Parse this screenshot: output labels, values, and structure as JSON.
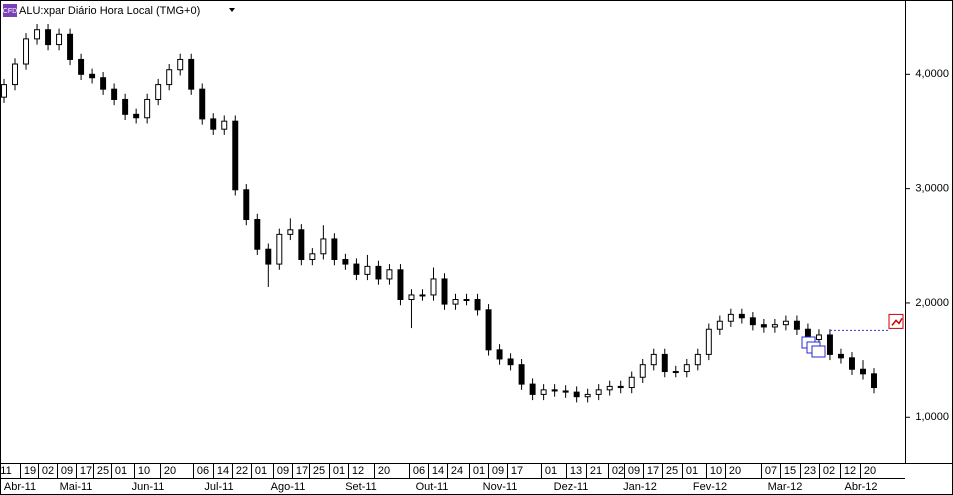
{
  "chart_data": {
    "type": "candlestick",
    "badge": "CFD",
    "title": "ALU:xpar Diário Hora Local (TMG+0)",
    "ylim": [
      0.6,
      4.65
    ],
    "yticks": [
      {
        "value": 1,
        "label": "1,0000"
      },
      {
        "value": 2,
        "label": "2,0000"
      },
      {
        "value": 3,
        "label": "3,0000"
      },
      {
        "value": 4,
        "label": "4,0000"
      }
    ],
    "day_labels": [
      "11",
      "19",
      "02",
      "09",
      "17",
      "25",
      "01",
      "10",
      "20",
      "06",
      "14",
      "22",
      "01",
      "09",
      "17",
      "25",
      "01",
      "12",
      "20",
      "06",
      "14",
      "24",
      "01",
      "09",
      "17",
      "01",
      "13",
      "21",
      "02",
      "09",
      "17",
      "25",
      "01",
      "10",
      "20",
      "07",
      "15",
      "23",
      "02",
      "12",
      "20"
    ],
    "month_labels": [
      "Abr-11",
      "Mai-11",
      "Jun-11",
      "Jul-11",
      "Ago-11",
      "Set-11",
      "Out-11",
      "Nov-11",
      "Dez-11",
      "Jan-12",
      "Fev-12",
      "Mar-12",
      "Abr-12"
    ],
    "up_color": "#ffffff",
    "down_color": "#000000",
    "outline_color": "#000000",
    "alert_level": 1.76,
    "alert_color": "#3a3ad0",
    "open": [
      3.8,
      3.91,
      4.09,
      4.31,
      4.39,
      4.26,
      4.35,
      4.13,
      4.0,
      3.97,
      3.87,
      3.78,
      3.65,
      3.62,
      3.78,
      3.91,
      4.04,
      4.13,
      3.87,
      3.61,
      3.52,
      3.59,
      2.99,
      2.73,
      2.47,
      2.34,
      2.6,
      2.64,
      2.38,
      2.43,
      2.56,
      2.38,
      2.34,
      2.25,
      2.32,
      2.21,
      2.29,
      2.03,
      2.07,
      2.07,
      2.21,
      1.99,
      2.03,
      2.03,
      1.94,
      1.59,
      1.51,
      1.46,
      1.29,
      1.2,
      1.24,
      1.23,
      1.22,
      1.18,
      1.2,
      1.24,
      1.27,
      1.26,
      1.35,
      1.46,
      1.55,
      1.4,
      1.4,
      1.46,
      1.55,
      1.77,
      1.84,
      1.9,
      1.87,
      1.81,
      1.79,
      1.81,
      1.84,
      1.77,
      1.68,
      1.72,
      1.55,
      1.52,
      1.42,
      1.38
    ],
    "high": [
      3.96,
      4.14,
      4.36,
      4.44,
      4.44,
      4.4,
      4.4,
      4.18,
      4.05,
      4.02,
      3.92,
      3.83,
      3.7,
      3.83,
      3.96,
      4.09,
      4.18,
      4.18,
      3.92,
      3.66,
      3.64,
      3.64,
      3.04,
      2.78,
      2.52,
      2.65,
      2.74,
      2.69,
      2.48,
      2.68,
      2.61,
      2.43,
      2.39,
      2.42,
      2.37,
      2.34,
      2.34,
      2.12,
      2.12,
      2.31,
      2.26,
      2.08,
      2.08,
      2.08,
      1.99,
      1.64,
      1.56,
      1.51,
      1.34,
      1.29,
      1.29,
      1.28,
      1.27,
      1.25,
      1.29,
      1.32,
      1.32,
      1.4,
      1.51,
      1.6,
      1.6,
      1.45,
      1.51,
      1.6,
      1.82,
      1.89,
      1.95,
      1.95,
      1.92,
      1.86,
      1.86,
      1.89,
      1.89,
      1.82,
      1.77,
      1.77,
      1.6,
      1.57,
      1.5,
      1.43
    ],
    "low": [
      3.75,
      3.86,
      4.04,
      4.26,
      4.21,
      4.21,
      4.08,
      3.95,
      3.92,
      3.82,
      3.73,
      3.6,
      3.57,
      3.57,
      3.73,
      3.86,
      3.99,
      3.82,
      3.56,
      3.47,
      3.47,
      2.94,
      2.68,
      2.42,
      2.14,
      2.29,
      2.55,
      2.33,
      2.33,
      2.38,
      2.33,
      2.29,
      2.2,
      2.2,
      2.16,
      2.16,
      1.98,
      1.78,
      2.02,
      2.02,
      1.94,
      1.94,
      1.98,
      1.89,
      1.54,
      1.46,
      1.41,
      1.24,
      1.15,
      1.15,
      1.18,
      1.17,
      1.13,
      1.13,
      1.15,
      1.19,
      1.21,
      1.21,
      1.3,
      1.41,
      1.35,
      1.35,
      1.35,
      1.41,
      1.5,
      1.72,
      1.79,
      1.82,
      1.76,
      1.74,
      1.74,
      1.76,
      1.72,
      1.63,
      1.63,
      1.5,
      1.47,
      1.37,
      1.33,
      1.21
    ],
    "close": [
      3.91,
      4.09,
      4.31,
      4.39,
      4.26,
      4.35,
      4.13,
      4.0,
      3.97,
      3.87,
      3.78,
      3.65,
      3.62,
      3.78,
      3.91,
      4.04,
      4.13,
      3.87,
      3.61,
      3.52,
      3.59,
      2.99,
      2.73,
      2.47,
      2.34,
      2.6,
      2.64,
      2.38,
      2.43,
      2.56,
      2.38,
      2.34,
      2.25,
      2.32,
      2.21,
      2.29,
      2.03,
      2.07,
      2.07,
      2.21,
      1.99,
      2.03,
      2.03,
      1.94,
      1.59,
      1.51,
      1.46,
      1.29,
      1.2,
      1.24,
      1.23,
      1.22,
      1.18,
      1.2,
      1.24,
      1.27,
      1.26,
      1.35,
      1.46,
      1.55,
      1.4,
      1.4,
      1.46,
      1.55,
      1.77,
      1.84,
      1.9,
      1.87,
      1.81,
      1.79,
      1.81,
      1.84,
      1.77,
      1.68,
      1.72,
      1.55,
      1.52,
      1.42,
      1.38,
      1.26
    ]
  }
}
